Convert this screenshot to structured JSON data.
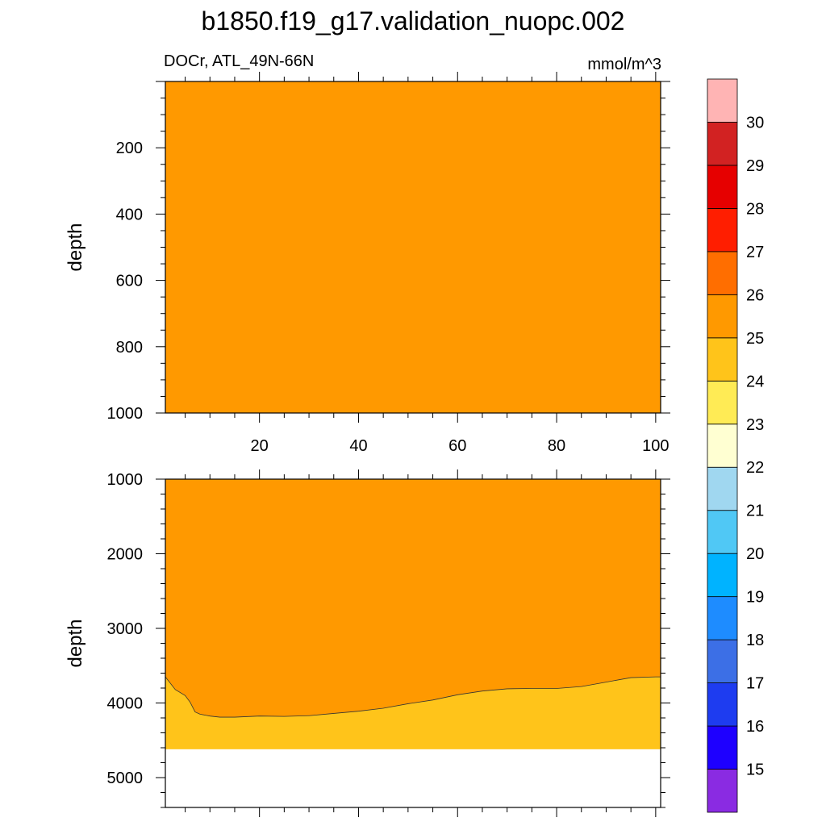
{
  "title": "b1850.f19_g17.validation_nuopc.002",
  "subtitle_left": "DOCr, ATL_49N-66N",
  "units": "mmol/m^3",
  "chart_data": [
    {
      "type": "heatmap",
      "panel": "upper",
      "ylabel": "depth",
      "xlim": [
        1,
        101
      ],
      "ylim": [
        1000,
        0
      ],
      "xticks": [
        20,
        40,
        60,
        80,
        100
      ],
      "yticks": [
        200,
        400,
        600,
        800,
        1000
      ],
      "contour_bands": [
        {
          "range": [
            25,
            26
          ],
          "color": "#ff9900",
          "x": [
            1,
            100
          ],
          "upper_depth": [
            0,
            0
          ],
          "lower_depth": [
            1000,
            1000
          ]
        }
      ]
    },
    {
      "type": "heatmap",
      "panel": "lower",
      "ylabel": "depth",
      "xlim": [
        1,
        101
      ],
      "ylim": [
        5400,
        1000
      ],
      "xticks": [
        20,
        40,
        60,
        80,
        100
      ],
      "yticks": [
        1000,
        2000,
        3000,
        4000,
        5000
      ],
      "no_data_below_depth": 4620,
      "contour_bands": [
        {
          "range": [
            25,
            26
          ],
          "color": "#ff9900",
          "top_depth": 1000
        },
        {
          "range": [
            24,
            25
          ],
          "color": "#ffc41a",
          "bottom_depth": 4620
        }
      ],
      "contour_25": {
        "x": [
          1,
          3,
          5,
          6,
          7,
          8,
          10,
          12,
          15,
          20,
          25,
          30,
          35,
          40,
          45,
          50,
          55,
          60,
          65,
          70,
          75,
          80,
          85,
          90,
          95,
          100
        ],
        "depth": [
          3650,
          3820,
          3900,
          3990,
          4120,
          4150,
          4175,
          4190,
          4190,
          4175,
          4180,
          4170,
          4140,
          4110,
          4070,
          4010,
          3960,
          3890,
          3840,
          3810,
          3805,
          3805,
          3780,
          3720,
          3660,
          3650
        ]
      }
    }
  ],
  "colorbar": {
    "labels": [
      "15",
      "16",
      "17",
      "18",
      "19",
      "20",
      "21",
      "22",
      "23",
      "24",
      "25",
      "26",
      "27",
      "28",
      "29",
      "30"
    ],
    "colors": [
      "#8a2be2",
      "#1e00ff",
      "#1e3cf0",
      "#3c6fe6",
      "#1e8cff",
      "#00b3ff",
      "#50c8f5",
      "#a0d7f0",
      "#ffffd2",
      "#ffeb55",
      "#ffc41a",
      "#ff9900",
      "#ff6e00",
      "#ff1e00",
      "#e60000",
      "#d22222",
      "#ffb4b4"
    ]
  }
}
